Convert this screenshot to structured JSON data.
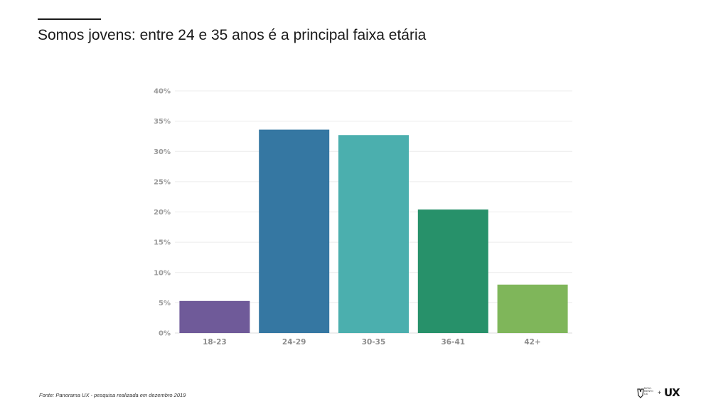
{
  "slide": {
    "title": "Somos jovens: entre 24 e 35 anos é a principal faixa etária",
    "source": "Fonte: Panorama UX - pesquisa realizada em dezembro 2019",
    "logos": {
      "brand_text": "MOVI-\nMENTO\nUX",
      "plus": "+",
      "ux_text": "UX"
    }
  },
  "chart_data": {
    "type": "bar",
    "title": "",
    "xlabel": "",
    "ylabel": "",
    "categories": [
      "18-23",
      "24-29",
      "30-35",
      "36-41",
      "42+"
    ],
    "values": [
      5.3,
      33.6,
      32.7,
      20.4,
      8.0
    ],
    "unit": "%",
    "ylim": [
      0,
      40
    ],
    "yticks": [
      0,
      5,
      10,
      15,
      20,
      25,
      30,
      35,
      40
    ],
    "ytick_labels": [
      "0%",
      "5%",
      "10%",
      "15%",
      "20%",
      "25%",
      "30%",
      "35%",
      "40%"
    ],
    "colors": [
      "#6f5a99",
      "#3577a2",
      "#4bafae",
      "#27916a",
      "#7fb65a"
    ],
    "grid": true,
    "legend": "none"
  }
}
